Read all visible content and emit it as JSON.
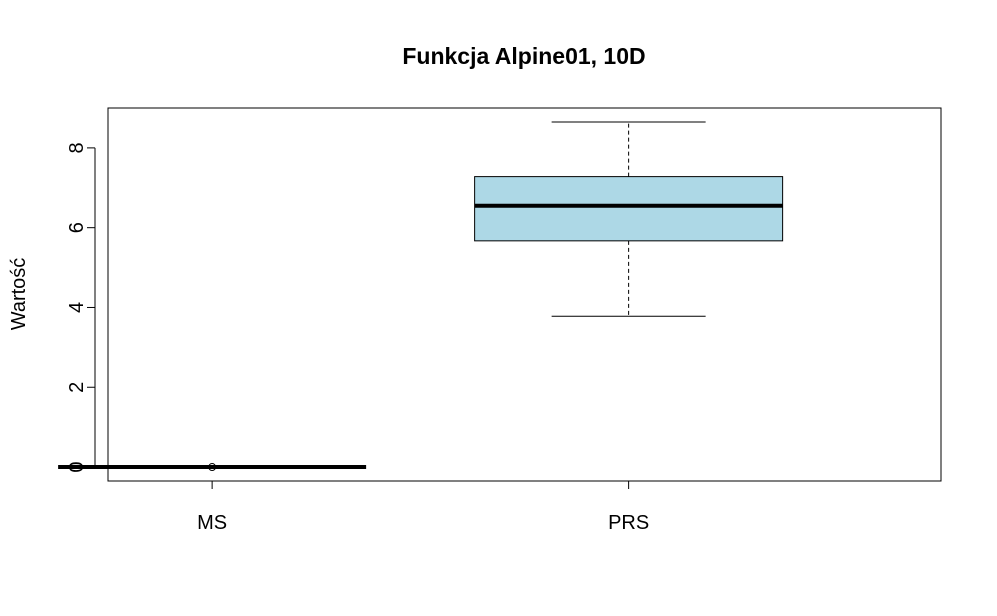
{
  "chart_data": {
    "type": "box",
    "title": "Funkcja Alpine01, 10D",
    "xlabel": "",
    "ylabel": "Wartość",
    "ylim": [
      -0.35,
      9.0
    ],
    "yticks": [
      0,
      2,
      4,
      6,
      8
    ],
    "categories": [
      "MS",
      "PRS"
    ],
    "boxes": [
      {
        "category": "MS",
        "whisker_low": 0.0,
        "q1": 0.0,
        "median": 0.0,
        "q3": 0.0,
        "whisker_high": 0.0,
        "outliers": [
          0.0
        ],
        "fill": "#ffffff"
      },
      {
        "category": "PRS",
        "whisker_low": 3.78,
        "q1": 5.67,
        "median": 6.55,
        "q3": 7.28,
        "whisker_high": 8.65,
        "outliers": [],
        "fill": "#add8e6"
      }
    ],
    "grid": false,
    "legend": "none"
  }
}
